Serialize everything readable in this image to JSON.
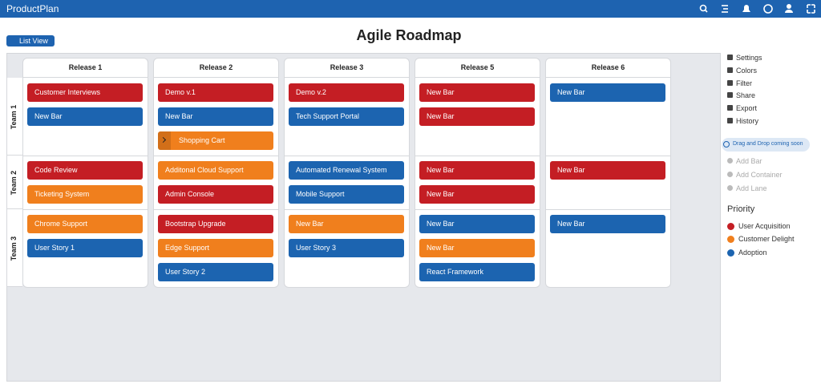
{
  "header": {
    "brand": "ProductPlan"
  },
  "toolbar": {
    "view_button": "List View"
  },
  "title": "Agile Roadmap",
  "board": {
    "releases": [
      "Release 1",
      "Release 2",
      "Release 3",
      "Release 5",
      "Release 6"
    ],
    "lanes": [
      {
        "name": "Team 1",
        "cells": [
          [
            {
              "label": "Customer Interviews",
              "color": "#c41e24"
            },
            {
              "label": "New Bar",
              "color": "#1c64b0"
            }
          ],
          [
            {
              "label": "Demo v.1",
              "color": "#c41e24"
            },
            {
              "label": "New Bar",
              "color": "#1c64b0"
            },
            {
              "label": "Shopping Cart",
              "color": "#f07f1d",
              "collapsed": true
            }
          ],
          [
            {
              "label": "Demo v.2",
              "color": "#c41e24"
            },
            {
              "label": "Tech Support Portal",
              "color": "#1c64b0"
            }
          ],
          [
            {
              "label": "New Bar",
              "color": "#c41e24"
            },
            {
              "label": "New Bar",
              "color": "#c41e24"
            }
          ],
          [
            {
              "label": "New Bar",
              "color": "#1c64b0"
            }
          ]
        ]
      },
      {
        "name": "Team 2",
        "cells": [
          [
            {
              "label": "Code Review",
              "color": "#c41e24"
            },
            {
              "label": "Ticketing System",
              "color": "#f07f1d"
            }
          ],
          [
            {
              "label": "Additonal Cloud Support",
              "color": "#f07f1d"
            },
            {
              "label": "Admin Console",
              "color": "#c41e24"
            }
          ],
          [
            {
              "label": "Automated Renewal System",
              "color": "#1c64b0"
            },
            {
              "label": "Mobile Support",
              "color": "#1c64b0"
            }
          ],
          [
            {
              "label": "New Bar",
              "color": "#c41e24"
            },
            {
              "label": "New Bar",
              "color": "#c41e24"
            }
          ],
          [
            {
              "label": "New Bar",
              "color": "#c41e24"
            }
          ]
        ]
      },
      {
        "name": "Team 3",
        "cells": [
          [
            {
              "label": "Chrome Support",
              "color": "#f07f1d"
            },
            {
              "label": "User Story 1",
              "color": "#1c64b0"
            }
          ],
          [
            {
              "label": "Bootstrap Upgrade",
              "color": "#c41e24"
            },
            {
              "label": "Edge Support",
              "color": "#f07f1d"
            },
            {
              "label": "User Story 2",
              "color": "#1c64b0"
            }
          ],
          [
            {
              "label": "New Bar",
              "color": "#f07f1d"
            },
            {
              "label": "User Story 3",
              "color": "#1c64b0"
            }
          ],
          [
            {
              "label": "New Bar",
              "color": "#1c64b0"
            },
            {
              "label": "New Bar",
              "color": "#f07f1d"
            },
            {
              "label": "React Framework",
              "color": "#1c64b0"
            }
          ],
          [
            {
              "label": "New Bar",
              "color": "#1c64b0"
            }
          ]
        ]
      }
    ]
  },
  "sidebar": {
    "actions": [
      "Settings",
      "Colors",
      "Filter",
      "Share",
      "Export",
      "History"
    ],
    "notice": "Drag and Drop coming soon",
    "add_actions": [
      "Add Bar",
      "Add Container",
      "Add Lane"
    ],
    "legend": {
      "title": "Priority",
      "items": [
        {
          "label": "User Acquisition",
          "color": "#c41e24"
        },
        {
          "label": "Customer Delight",
          "color": "#f07f1d"
        },
        {
          "label": "Adoption",
          "color": "#1c64b0"
        }
      ]
    }
  }
}
